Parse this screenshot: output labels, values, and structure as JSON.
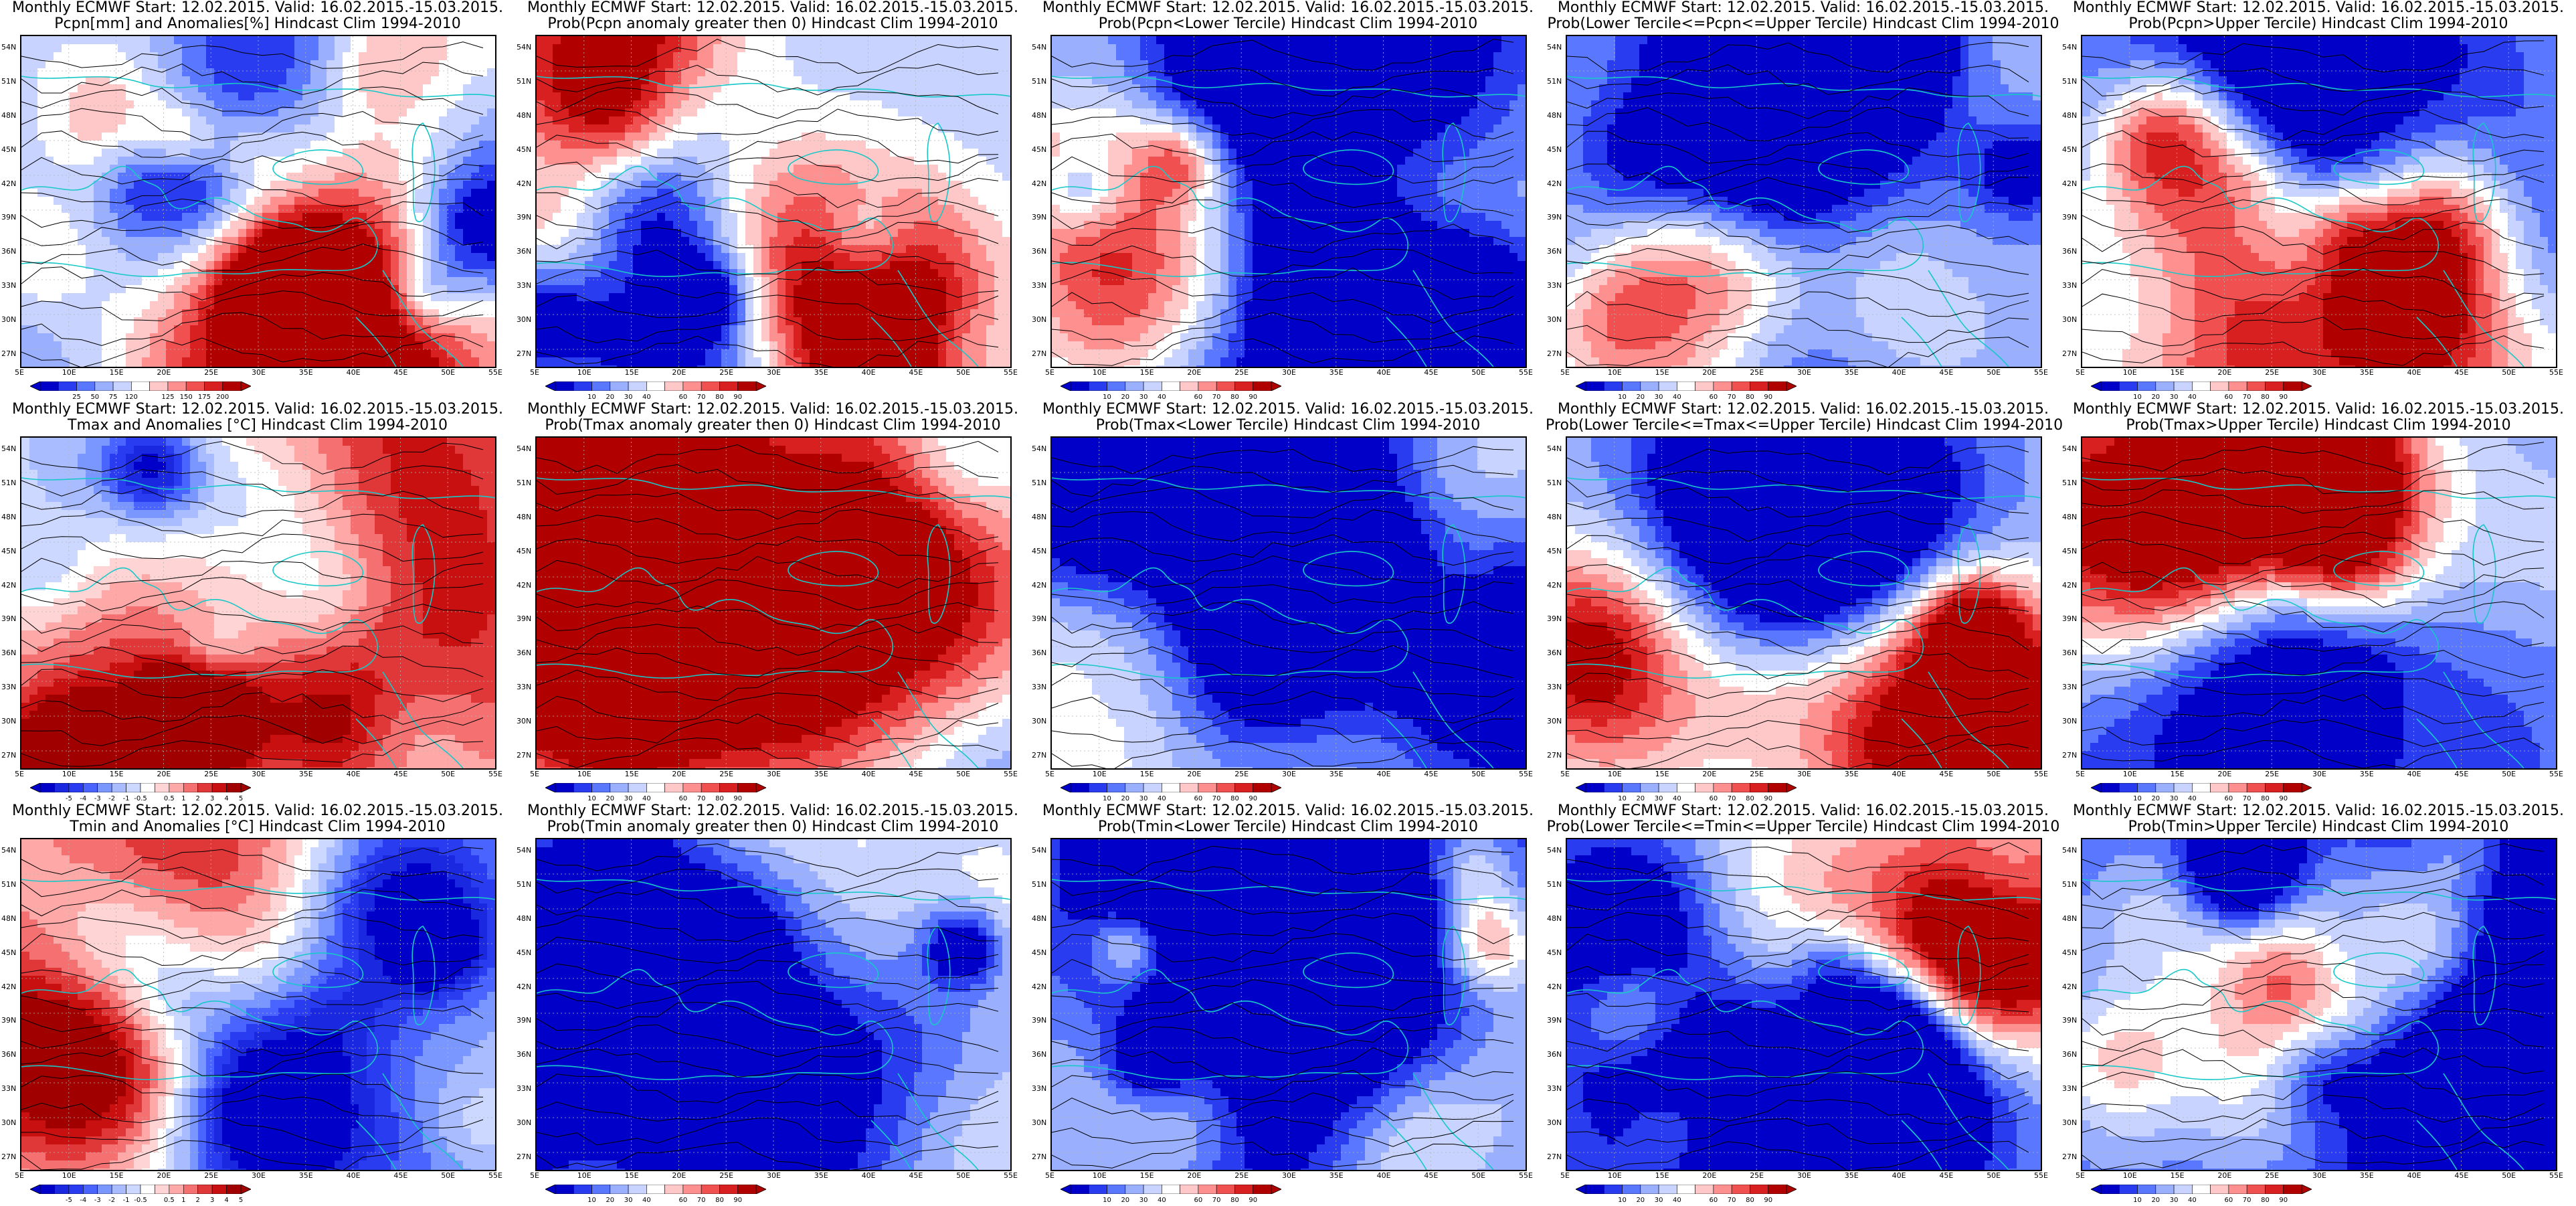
{
  "panels": [
    {
      "title1": "Monthly ECMWF Start: 12.02.2015. Valid: 16.02.2015.-15.03.2015.",
      "title2": "Pcpn[mm] and Anomalies[%] Hindcast Clim 1994-2010",
      "scale": "pcpn",
      "pattern": "pcpn_anom"
    },
    {
      "title1": "Monthly ECMWF Start: 12.02.2015. Valid: 16.02.2015.-15.03.2015.",
      "title2": "Prob(Pcpn anomaly greater then 0) Hindcast Clim 1994-2010",
      "scale": "prob",
      "pattern": "pcpn_pos"
    },
    {
      "title1": "Monthly ECMWF Start: 12.02.2015. Valid: 16.02.2015.-15.03.2015.",
      "title2": "Prob(Pcpn<Lower Tercile) Hindcast Clim 1994-2010",
      "scale": "prob",
      "pattern": "pcpn_low"
    },
    {
      "title1": "Monthly ECMWF Start: 12.02.2015. Valid: 16.02.2015.-15.03.2015.",
      "title2": "Prob(Lower Tercile<=Pcpn<=Upper Tercile) Hindcast Clim 1994-2010",
      "scale": "prob",
      "pattern": "pcpn_mid"
    },
    {
      "title1": "Monthly ECMWF Start: 12.02.2015. Valid: 16.02.2015.-15.03.2015.",
      "title2": "Prob(Pcpn>Upper Tercile) Hindcast Clim 1994-2010",
      "scale": "prob",
      "pattern": "pcpn_up"
    },
    {
      "title1": "Monthly ECMWF Start: 12.02.2015. Valid: 16.02.2015.-15.03.2015.",
      "title2": "Tmax and Anomalies [°C] Hindcast Clim 1994-2010",
      "scale": "temp",
      "pattern": "t_anom"
    },
    {
      "title1": "Monthly ECMWF Start: 12.02.2015. Valid: 16.02.2015.-15.03.2015.",
      "title2": "Prob(Tmax anomaly greater then 0) Hindcast Clim 1994-2010",
      "scale": "prob",
      "pattern": "t_pos"
    },
    {
      "title1": "Monthly ECMWF Start: 12.02.2015. Valid: 16.02.2015.-15.03.2015.",
      "title2": "Prob(Tmax<Lower Tercile) Hindcast Clim 1994-2010",
      "scale": "prob",
      "pattern": "t_low"
    },
    {
      "title1": "Monthly ECMWF Start: 12.02.2015. Valid: 16.02.2015.-15.03.2015.",
      "title2": "Prob(Lower Tercile<=Tmax<=Upper Tercile) Hindcast Clim 1994-2010",
      "scale": "prob",
      "pattern": "t_mid"
    },
    {
      "title1": "Monthly ECMWF Start: 12.02.2015. Valid: 16.02.2015.-15.03.2015.",
      "title2": "Prob(Tmax>Upper Tercile) Hindcast Clim 1994-2010",
      "scale": "prob",
      "pattern": "t_up"
    },
    {
      "title1": "Monthly ECMWF Start: 12.02.2015. Valid: 16.02.2015.-15.03.2015.",
      "title2": "Tmin and Anomalies [°C] Hindcast Clim 1994-2010",
      "scale": "temp",
      "pattern": "tn_anom"
    },
    {
      "title1": "Monthly ECMWF Start: 12.02.2015. Valid: 16.02.2015.-15.03.2015.",
      "title2": "Prob(Tmin anomaly greater then 0) Hindcast Clim 1994-2010",
      "scale": "prob",
      "pattern": "tn_pos"
    },
    {
      "title1": "Monthly ECMWF Start: 12.02.2015. Valid: 16.02.2015.-15.03.2015.",
      "title2": "Prob(Tmin<Lower Tercile) Hindcast Clim 1994-2010",
      "scale": "prob",
      "pattern": "tn_low"
    },
    {
      "title1": "Monthly ECMWF Start: 12.02.2015. Valid: 16.02.2015.-15.03.2015.",
      "title2": "Prob(Lower Tercile<=Tmin<=Upper Tercile) Hindcast Clim 1994-2010",
      "scale": "prob",
      "pattern": "tn_mid"
    },
    {
      "title1": "Monthly ECMWF Start: 12.02.2015. Valid: 16.02.2015.-15.03.2015.",
      "title2": "Prob(Tmin>Upper Tercile) Hindcast Clim 1994-2010",
      "scale": "prob",
      "pattern": "tn_up"
    }
  ],
  "lat_labels": [
    "54N",
    "51N",
    "48N",
    "45N",
    "42N",
    "39N",
    "36N",
    "33N",
    "30N",
    "27N"
  ],
  "lon_labels": [
    "5E",
    "10E",
    "15E",
    "20E",
    "25E",
    "30E",
    "35E",
    "40E",
    "45E",
    "50E",
    "55E"
  ],
  "scales": {
    "pcpn": {
      "ticks": [
        "25",
        "50",
        "75",
        "120",
        "125",
        "150",
        "175",
        "200"
      ],
      "colors": [
        "#0000c8",
        "#2a3cf0",
        "#5a78ff",
        "#9ab0ff",
        "#c8d4ff",
        "#ffffff",
        "#ffc8c8",
        "#ff9090",
        "#f05050",
        "#d82020",
        "#b00000"
      ]
    },
    "prob": {
      "ticks": [
        "10",
        "20",
        "30",
        "40",
        "60",
        "70",
        "80",
        "90"
      ],
      "colors": [
        "#0000c8",
        "#2a3cf0",
        "#5a78ff",
        "#9ab0ff",
        "#c8d4ff",
        "#ffffff",
        "#ffc8c8",
        "#ff9090",
        "#f05050",
        "#d82020",
        "#b00000"
      ]
    },
    "temp": {
      "ticks": [
        "-5",
        "-4",
        "-3",
        "-2",
        "-1",
        "-0.5",
        "0.5",
        "1",
        "2",
        "3",
        "4",
        "5"
      ],
      "colors": [
        "#0000c8",
        "#1a28e0",
        "#2a3cf0",
        "#4a64ff",
        "#7a96ff",
        "#a8bcff",
        "#ccd8ff",
        "#ffffff",
        "#ffd4d4",
        "#ffa8a8",
        "#f57070",
        "#e03838",
        "#c81010",
        "#a00000"
      ]
    }
  },
  "colors": {
    "coast": "#18c8c8",
    "contour": "#000000",
    "grid": "#b4b4b4"
  }
}
